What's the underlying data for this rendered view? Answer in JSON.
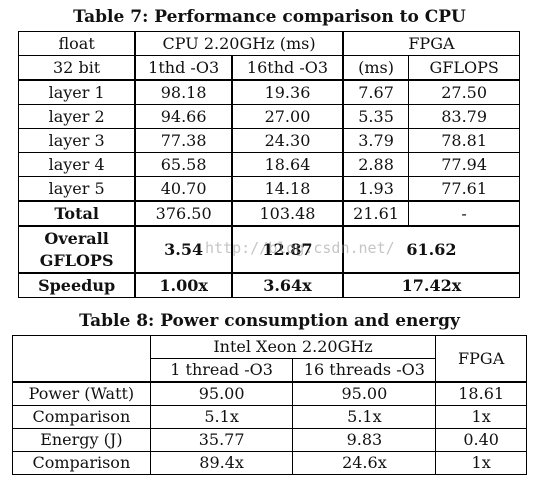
{
  "table7": {
    "caption": "Table 7: Performance comparison to CPU",
    "header1": {
      "float": "float",
      "cpu": "CPU 2.20GHz (ms)",
      "fpga": "FPGA"
    },
    "header2": {
      "bits": "32 bit",
      "c1": "1thd -O3",
      "c16": "16thd -O3",
      "ms": "(ms)",
      "gflops": "GFLOPS"
    },
    "rows": [
      {
        "label": "layer 1",
        "c1": "98.18",
        "c16": "19.36",
        "ms": "7.67",
        "gflops": "27.50"
      },
      {
        "label": "layer 2",
        "c1": "94.66",
        "c16": "27.00",
        "ms": "5.35",
        "gflops": "83.79"
      },
      {
        "label": "layer 3",
        "c1": "77.38",
        "c16": "24.30",
        "ms": "3.79",
        "gflops": "78.81"
      },
      {
        "label": "layer 4",
        "c1": "65.58",
        "c16": "18.64",
        "ms": "2.88",
        "gflops": "77.94"
      },
      {
        "label": "layer 5",
        "c1": "40.70",
        "c16": "14.18",
        "ms": "1.93",
        "gflops": "77.61"
      }
    ],
    "total": {
      "label": "Total",
      "c1": "376.50",
      "c16": "103.48",
      "ms": "21.61",
      "gflops": "-"
    },
    "overall": {
      "label_line1": "Overall",
      "label_line2": "GFLOPS",
      "c1": "3.54",
      "c16": "12.87",
      "fpga": "61.62"
    },
    "speedup": {
      "label": "Speedup",
      "c1": "1.00x",
      "c16": "3.64x",
      "fpga": "17.42x"
    }
  },
  "table8": {
    "caption": "Table 8: Power consumption and energy",
    "header1": {
      "cpu": "Intel Xeon 2.20GHz",
      "fpga": "FPGA"
    },
    "header2": {
      "t1": "1 thread -O3",
      "t16": "16 threads -O3"
    },
    "rows": [
      {
        "label": "Power (Watt)",
        "t1": "95.00",
        "t16": "95.00",
        "fpga": "18.61"
      },
      {
        "label": "Comparison",
        "t1": "5.1x",
        "t16": "5.1x",
        "fpga": "1x"
      },
      {
        "label": "Energy (J)",
        "t1": "35.77",
        "t16": "9.83",
        "fpga": "0.40"
      },
      {
        "label": "Comparison",
        "t1": "89.4x",
        "t16": "24.6x",
        "fpga": "1x"
      }
    ]
  },
  "watermark": "http://blog.csdn.net/"
}
